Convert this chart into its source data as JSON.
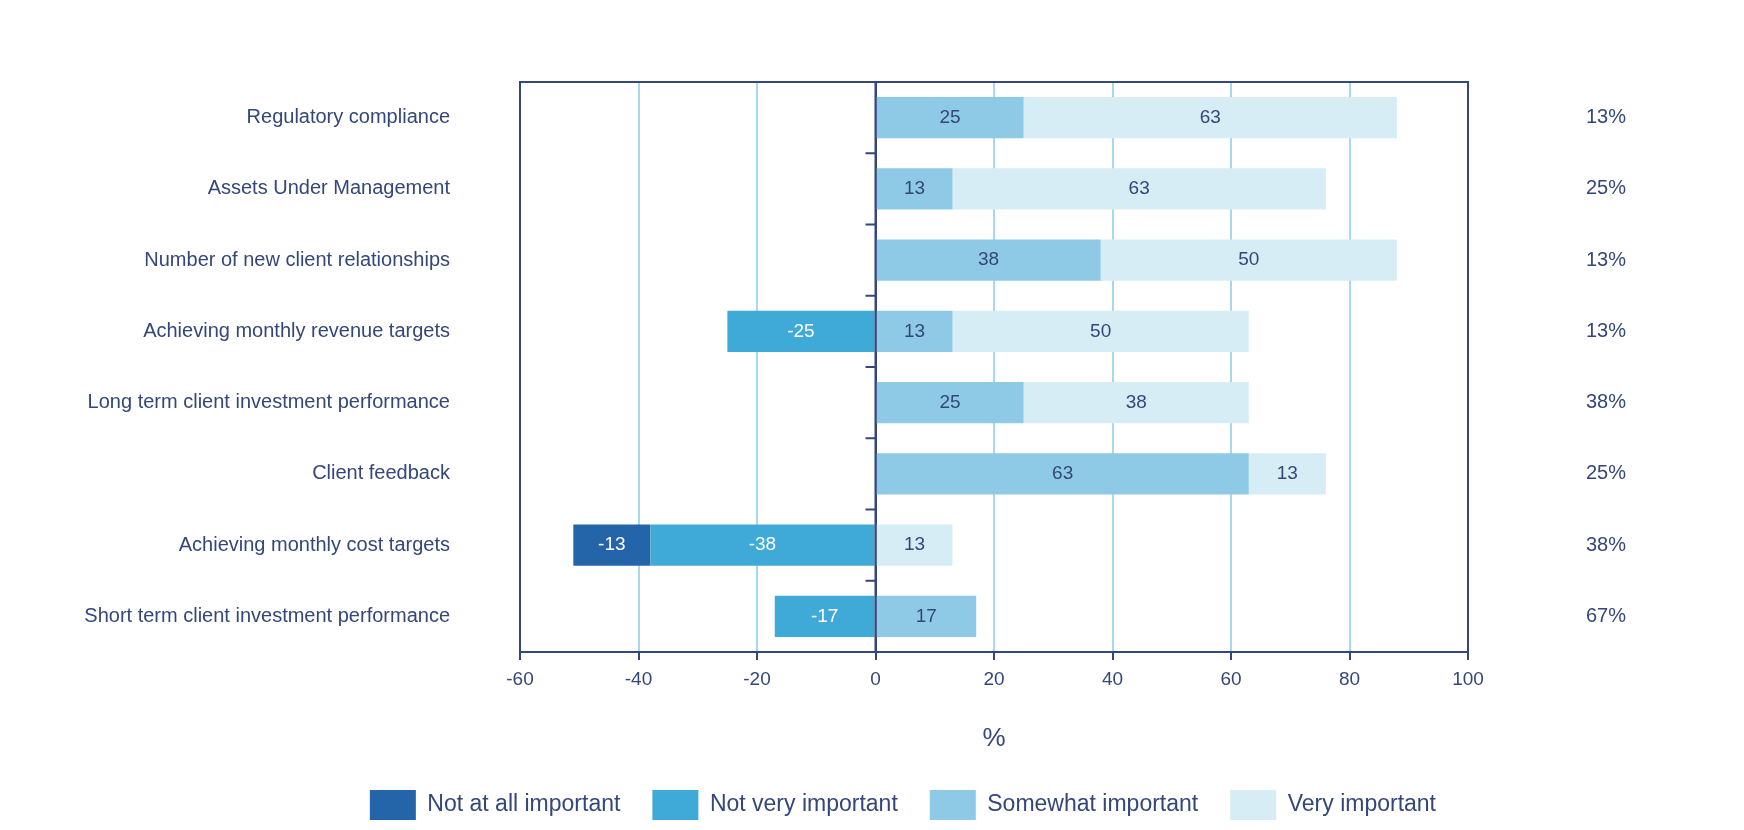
{
  "chart_data": {
    "type": "bar",
    "orientation": "horizontal",
    "stacked": true,
    "categories": [
      "Regulatory compliance",
      "Assets Under Management",
      "Number of new client relationships",
      "Achieving monthly revenue targets",
      "Long term client investment performance",
      "Client feedback",
      "Achieving monthly cost targets",
      "Short term client investment performance"
    ],
    "series": [
      {
        "name": "Not at all important",
        "color": "#2464a8",
        "values": [
          null,
          null,
          null,
          null,
          null,
          null,
          -13,
          null
        ]
      },
      {
        "name": "Not very important",
        "color": "#3fa9d8",
        "values": [
          null,
          null,
          null,
          -25,
          null,
          null,
          -38,
          -17
        ]
      },
      {
        "name": "Somewhat important",
        "color": "#8ecae6",
        "values": [
          25,
          13,
          38,
          13,
          25,
          63,
          null,
          17
        ]
      },
      {
        "name": "Very important",
        "color": "#d6edf6",
        "values": [
          63,
          63,
          50,
          50,
          38,
          13,
          13,
          null
        ]
      }
    ],
    "xlim": [
      -60,
      100
    ],
    "xticks": [
      -60,
      -40,
      -20,
      0,
      20,
      40,
      60,
      80,
      100
    ],
    "xlabel": "%",
    "grid": "x",
    "legend": "bottom",
    "data_labels": true,
    "annotations": [
      "13%",
      "25%",
      "13%",
      "13%",
      "38%",
      "25%",
      "38%",
      "67%"
    ]
  }
}
